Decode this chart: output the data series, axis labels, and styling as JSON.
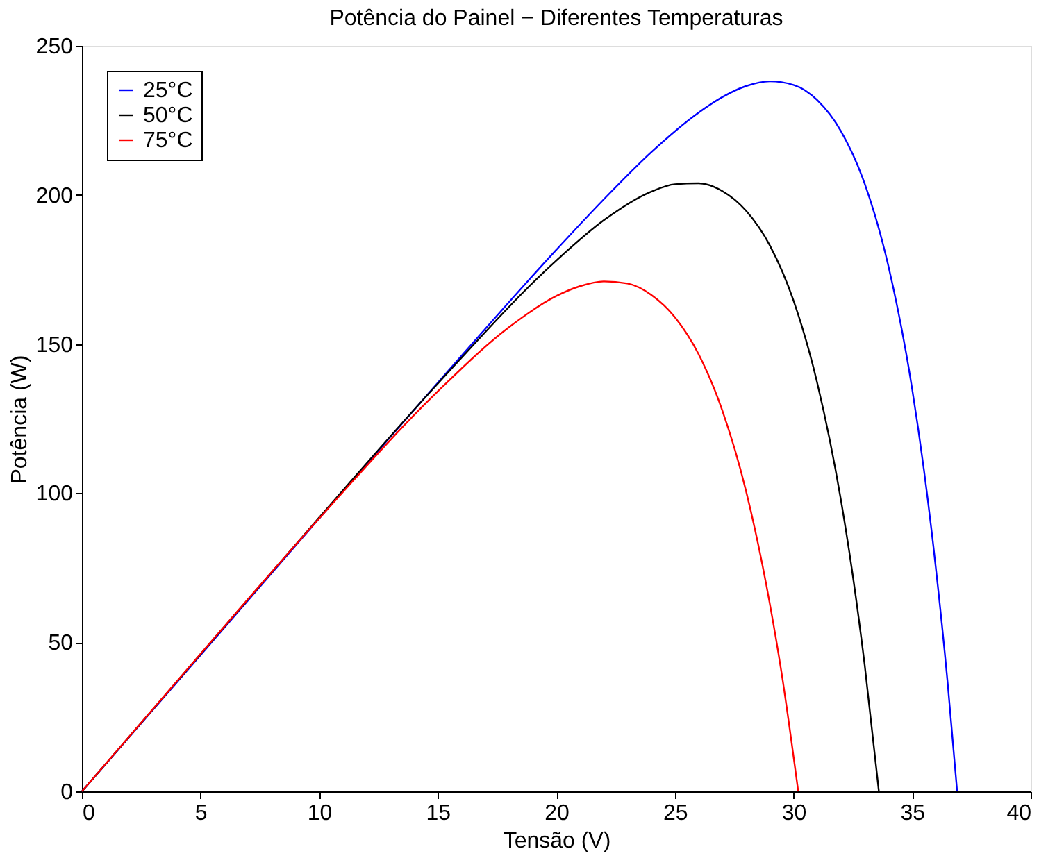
{
  "chart_data": {
    "type": "line",
    "title": "Potência do Painel − Diferentes Temperaturas",
    "xlabel": "Tensão (V)",
    "ylabel": "Potência (W)",
    "xlim": [
      0,
      40
    ],
    "ylim": [
      0,
      250
    ],
    "xticks": [
      0,
      5,
      10,
      15,
      20,
      25,
      30,
      35,
      40
    ],
    "yticks": [
      0,
      50,
      100,
      150,
      200,
      250
    ],
    "grid": false,
    "legend": "top left",
    "marker": "none",
    "line_style": "solid",
    "series": [
      {
        "name": "25°C",
        "color": "#0000ff",
        "x": [
          0,
          5,
          10,
          15,
          20,
          22,
          24,
          26,
          27,
          28,
          29,
          30,
          31,
          32,
          33,
          34,
          35,
          35.5,
          36,
          36.5,
          36.9
        ],
        "values": [
          0,
          45.7,
          91.5,
          137.0,
          181.6,
          198.5,
          214.3,
          227.6,
          232.8,
          236.5,
          238.1,
          236.9,
          231.8,
          221.4,
          203.8,
          176.2,
          135.1,
          107.8,
          75.1,
          36.4,
          0
        ]
      },
      {
        "name": "50°C",
        "color": "#000000",
        "x": [
          0,
          5,
          10,
          15,
          20,
          22,
          24,
          25,
          26,
          27,
          28,
          29,
          30,
          31,
          32,
          32.5,
          33,
          33.6
        ],
        "values": [
          0,
          46.0,
          91.8,
          136.7,
          178.0,
          191.5,
          201.1,
          203.6,
          203.9,
          201.3,
          194.7,
          183.1,
          164.6,
          137.0,
          97.7,
          72.4,
          42.5,
          0
        ]
      },
      {
        "name": "75°C",
        "color": "#ff0000",
        "x": [
          0,
          5,
          10,
          15,
          18,
          20,
          21,
          22,
          23,
          24,
          25,
          26,
          27,
          28,
          29,
          29.5,
          30.2
        ],
        "values": [
          0,
          46.1,
          91.5,
          134.1,
          155.6,
          166.1,
          169.4,
          171.0,
          170.3,
          166.5,
          159.0,
          146.6,
          127.7,
          100.7,
          63.0,
          39.6,
          0
        ]
      }
    ]
  }
}
